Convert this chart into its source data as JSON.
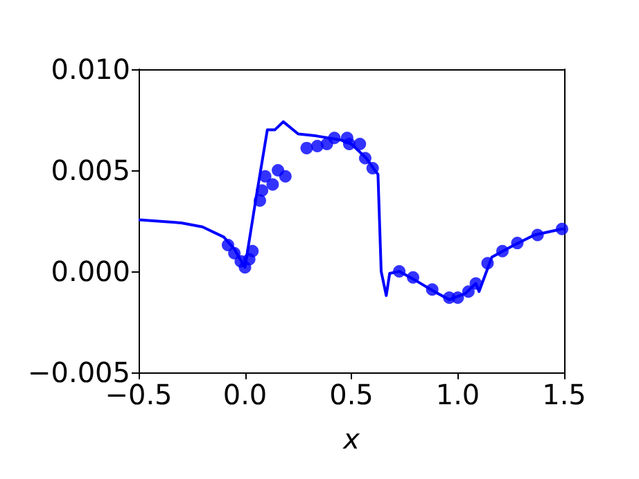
{
  "chart_data": {
    "type": "line",
    "xlabel": "x",
    "xlim": [
      -0.5,
      1.5
    ],
    "xticks": [
      {
        "value": -0.5,
        "label": "−0.5"
      },
      {
        "value": 0,
        "label": "0.0"
      },
      {
        "value": 0.5,
        "label": "0.5"
      },
      {
        "value": 1,
        "label": "1.0"
      },
      {
        "value": 1.5,
        "label": "1.5"
      }
    ],
    "ylim": [
      -0.005,
      0.01
    ],
    "yticks": [
      {
        "value": -0.005,
        "label": "−0.005"
      },
      {
        "value": 0,
        "label": "0.000"
      },
      {
        "value": 0.005,
        "label": "0.005"
      },
      {
        "value": 0.01,
        "label": "0.010"
      }
    ],
    "series": [
      {
        "color": "#0000ff",
        "marker": "none",
        "x": [
          -0.5,
          -0.3,
          -0.2,
          -0.1,
          -0.05,
          0,
          0.05,
          0.105,
          0.14,
          0.18,
          0.25,
          0.335,
          0.45,
          0.5,
          0.57,
          0.61,
          0.625,
          0.64,
          0.664,
          0.68,
          0.725,
          0.81,
          0.89,
          0.96,
          1.035,
          1.085,
          1.1,
          1.16,
          1.265,
          1.36,
          1.49,
          1.5
        ],
        "values": [
          0.00255,
          0.0024,
          0.0022,
          0.0017,
          0.0011,
          0.0002,
          0.0035,
          0.007,
          0.007,
          0.0074,
          0.0068,
          0.0067,
          0.0065,
          0.0063,
          0.0056,
          0.005,
          0.0048,
          0.0,
          -0.0012,
          -0.0001,
          0.0,
          -0.0005,
          -0.001,
          -0.0014,
          -0.0011,
          -0.0006,
          -0.001,
          0.0007,
          0.0013,
          0.0018,
          0.0021,
          0.0021
        ]
      },
      {
        "type": "scatter",
        "color": "#0000ff",
        "marker": "circle",
        "x": [
          -0.08,
          -0.05,
          -0.02,
          0,
          0.02,
          0.035,
          0.07,
          0.08,
          0.095,
          0.13,
          0.155,
          0.19,
          0.29,
          0.34,
          0.385,
          0.42,
          0.48,
          0.49,
          0.54,
          0.565,
          0.6,
          0.725,
          0.79,
          0.88,
          0.96,
          1.0,
          1.05,
          1.085,
          1.14,
          1.21,
          1.28,
          1.375,
          1.49
        ],
        "values": [
          0.0013,
          0.0009,
          0.0005,
          0.0002,
          0.0006,
          0.001,
          0.0035,
          0.004,
          0.0047,
          0.0043,
          0.005,
          0.0047,
          0.0061,
          0.0062,
          0.0063,
          0.0066,
          0.0066,
          0.0063,
          0.0063,
          0.0056,
          0.0051,
          0.0,
          -0.0003,
          -0.0009,
          -0.0013,
          -0.0013,
          -0.001,
          -0.0006,
          0.0004,
          0.001,
          0.0014,
          0.0018,
          0.0021
        ]
      }
    ]
  }
}
